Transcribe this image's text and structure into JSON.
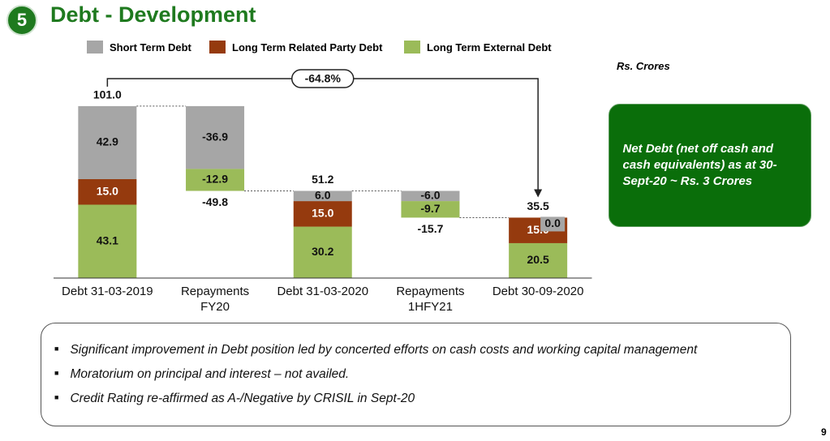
{
  "slide": {
    "number": "5",
    "title": "Debt - Development",
    "unit_note": "Rs. Crores",
    "net_debt_note": "Net Debt (net off cash and cash equivalents) as at 30-Sept-20 ~ Rs. 3 Crores",
    "bullets": [
      "Significant improvement in Debt position led by concerted efforts on cash costs and working capital management",
      "Moratorium on principal and interest – not availed.",
      "Credit Rating re-affirmed as A-/Negative by CRISIL in Sept-20"
    ],
    "page_number": "9"
  },
  "chart_data": {
    "type": "waterfall",
    "categories": [
      "Debt 31-03-2019",
      "Repayments\nFY20",
      "Debt 31-03-2020",
      "Repayments\n1HFY21",
      "Debt 30-09-2020"
    ],
    "series": [
      {
        "name": "Short Term Debt",
        "color": "#a6a6a6",
        "values": [
          42.9,
          -36.9,
          6.0,
          -6.0,
          0.0
        ],
        "value_labels": [
          "42.9",
          "-36.9",
          "6.0",
          "-6.0",
          "0.0"
        ]
      },
      {
        "name": "Long Term Related Party Debt",
        "color": "#953a0e",
        "values": [
          15.0,
          null,
          15.0,
          null,
          15.0
        ],
        "value_labels": [
          "15.0",
          null,
          "15.0",
          null,
          "15.0"
        ]
      },
      {
        "name": "Long Term External Debt",
        "color": "#9bbb59",
        "values": [
          43.1,
          -12.9,
          30.2,
          -9.7,
          20.5
        ],
        "value_labels": [
          "43.1",
          "-12.9",
          "30.2",
          "-9.7",
          "20.5"
        ]
      }
    ],
    "totals": [
      101.0,
      -49.8,
      51.2,
      -15.7,
      35.5
    ],
    "total_labels": [
      "101.0",
      "-49.8",
      "51.2",
      "-15.7",
      "35.5"
    ],
    "annotation": "-64.8%"
  }
}
